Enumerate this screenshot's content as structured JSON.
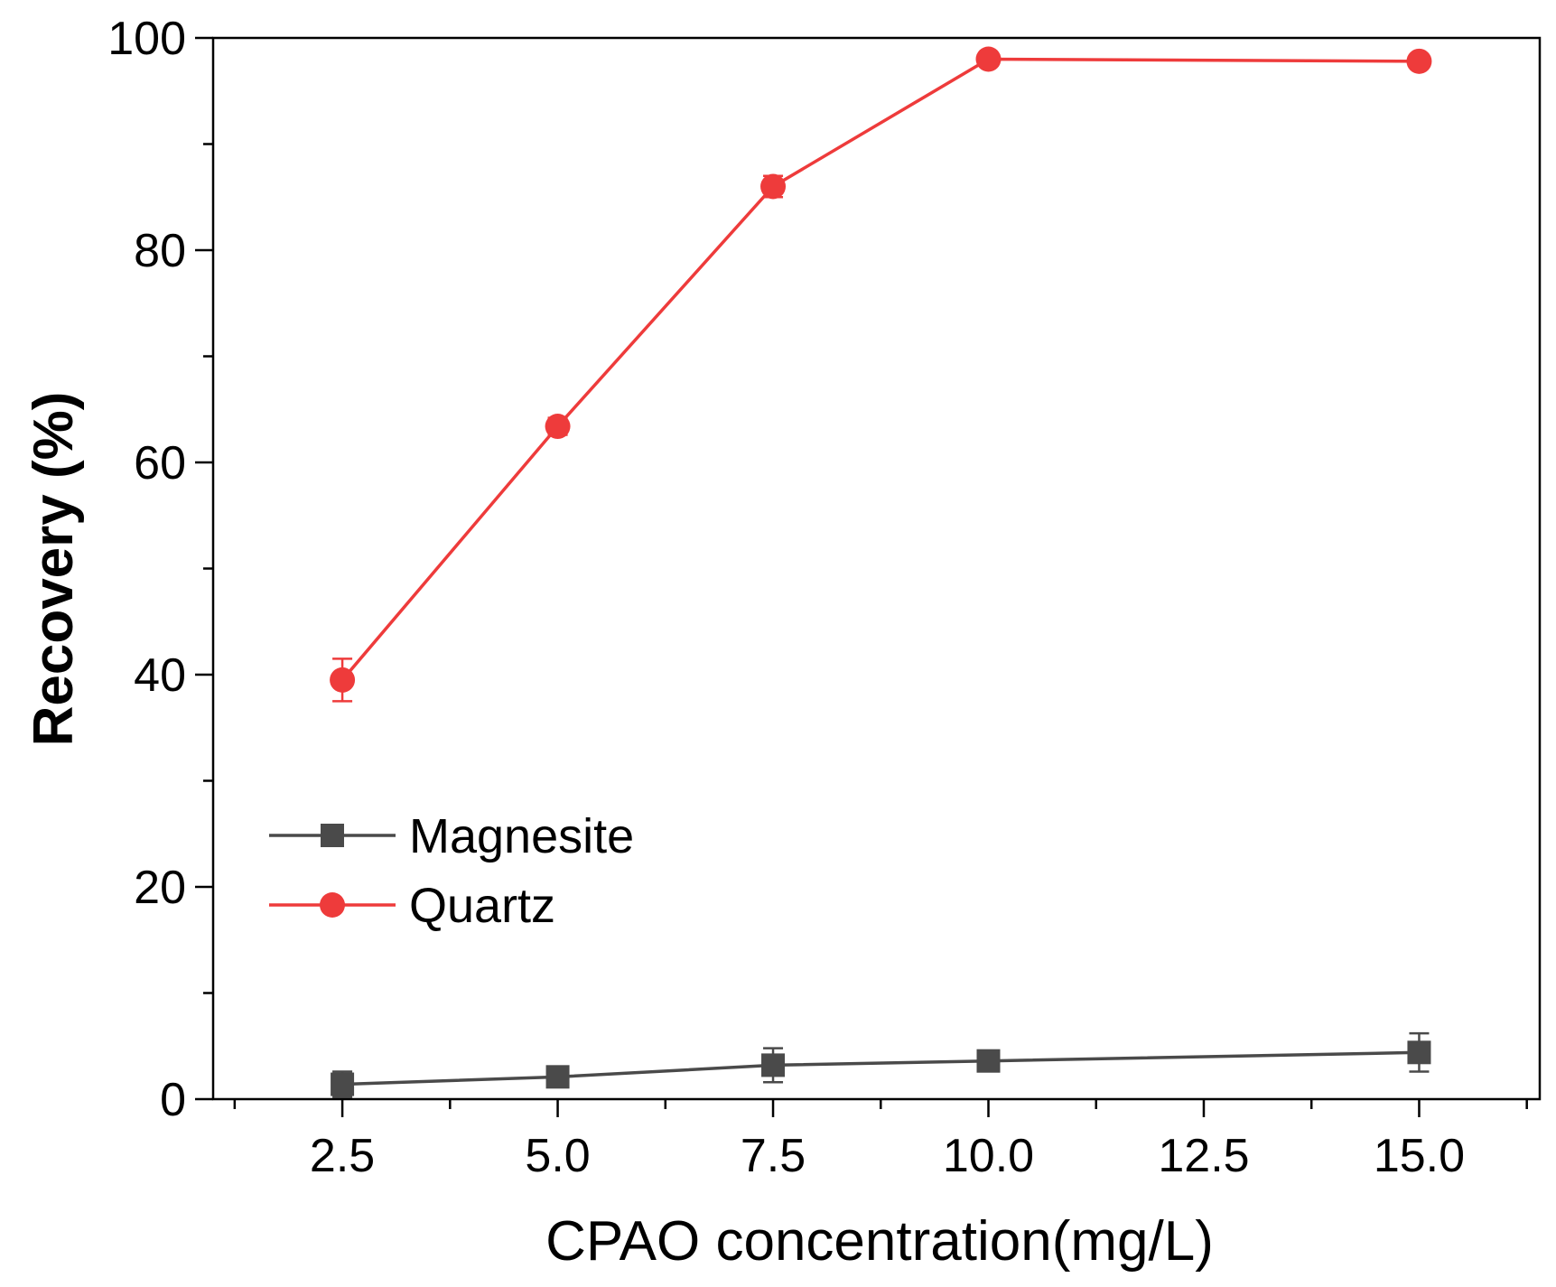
{
  "chart_data": {
    "type": "line",
    "title": "",
    "xlabel": "CPAO concentration(mg/L)",
    "ylabel": "Recovery (%)",
    "x_positions": [
      2.5,
      5.0,
      7.5,
      10.0,
      12.5,
      15.0
    ],
    "x_tick_labels": [
      "2.5",
      "5.0",
      "7.5",
      "10.0",
      "12.5",
      "15.0"
    ],
    "xlim": [
      1.0,
      16.4
    ],
    "ylim": [
      0,
      100
    ],
    "y_ticks": [
      0,
      20,
      40,
      60,
      80,
      100
    ],
    "y_tick_labels": [
      "0",
      "20",
      "40",
      "60",
      "80",
      "100"
    ],
    "legend_position": "center-left",
    "series": [
      {
        "name": "Magnesite",
        "color": "#4a4a4a",
        "marker": "square",
        "x": [
          2.5,
          5.0,
          7.5,
          10.0,
          15.0
        ],
        "y": [
          1.4,
          2.1,
          3.2,
          3.6,
          4.4
        ],
        "error": [
          1.2,
          0.5,
          1.6,
          0.5,
          1.8
        ]
      },
      {
        "name": "Quartz",
        "color": "#ee3b3b",
        "marker": "circle",
        "x": [
          2.5,
          5.0,
          7.5,
          10.0,
          15.0
        ],
        "y": [
          39.5,
          63.4,
          86.0,
          98.0,
          97.8
        ],
        "error": [
          2.0,
          0.8,
          1.0,
          0.5,
          0.4
        ]
      }
    ]
  }
}
